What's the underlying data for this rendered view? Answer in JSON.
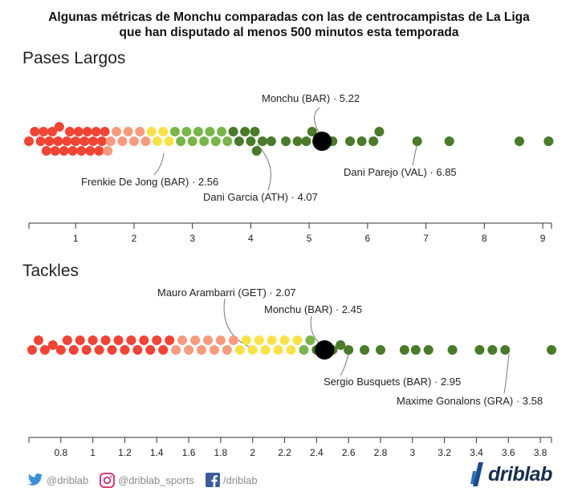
{
  "title_lines": [
    "Algunas métricas de Monchu comparadas con las de centrocampistas de La Liga",
    "que han disputado al menos 500 minutos esta temporada"
  ],
  "colors": {
    "red": "#f04435",
    "salmon": "#f79b7e",
    "yellow": "#f8e24a",
    "lightgreen": "#79b54a",
    "darkgreen": "#4a7a2a",
    "highlight": "#000000",
    "connector": "#777777"
  },
  "chart_data": [
    {
      "type": "scatter",
      "title": "Pases Largos",
      "xlim": [
        0.2,
        9.15
      ],
      "ticks": [
        "1",
        "2",
        "3",
        "4",
        "5",
        "6",
        "7",
        "8",
        "9"
      ],
      "tick_values": [
        1,
        2,
        3,
        4,
        5,
        6,
        7,
        8,
        9
      ],
      "color_breaks": [
        1.0,
        1.55,
        2.25,
        2.7,
        3.7
      ],
      "highlight": {
        "name": "Monchu (BAR)",
        "value": 5.22,
        "label": "Monchu (BAR) · 5.22"
      },
      "annotations": [
        {
          "label": "Frenkie De Jong (BAR) · 2.56",
          "value": 2.56
        },
        {
          "label": "Dani Garcia (ATH) · 4.07",
          "value": 4.07
        },
        {
          "label": "Dani Parejo (VAL) · 6.85",
          "value": 6.85
        }
      ],
      "values": [
        0.2,
        0.3,
        0.4,
        0.45,
        0.5,
        0.55,
        0.6,
        0.65,
        0.7,
        0.72,
        0.8,
        0.85,
        0.9,
        0.95,
        1.0,
        1.05,
        1.1,
        1.15,
        1.2,
        1.25,
        1.3,
        1.35,
        1.4,
        1.45,
        1.5,
        1.55,
        1.6,
        1.7,
        1.8,
        1.9,
        2.0,
        2.1,
        2.2,
        2.3,
        2.4,
        2.5,
        2.6,
        2.7,
        2.8,
        2.9,
        3.0,
        3.1,
        3.2,
        3.3,
        3.4,
        3.5,
        3.6,
        3.7,
        3.8,
        3.9,
        4.0,
        4.07,
        4.1,
        4.2,
        4.35,
        4.6,
        4.8,
        4.95,
        5.05,
        5.4,
        5.7,
        5.9,
        6.1,
        6.2,
        6.85,
        7.4,
        8.6,
        9.1
      ]
    },
    {
      "type": "scatter",
      "title": "Tackles",
      "xlim": [
        0.6,
        3.87
      ],
      "ticks": [
        "0.8",
        "1",
        "1.2",
        "1.4",
        "1.6",
        "1.8",
        "2",
        "2.2",
        "2.4",
        "2.6",
        "2.8",
        "3",
        "3.2",
        "3.4",
        "3.6",
        "3.8"
      ],
      "tick_values": [
        0.8,
        1.0,
        1.2,
        1.4,
        1.6,
        1.8,
        2.0,
        2.2,
        2.4,
        2.6,
        2.8,
        3.0,
        3.2,
        3.4,
        3.6,
        3.8
      ],
      "color_breaks": [
        1.1,
        1.5,
        1.9,
        2.3,
        2.4
      ],
      "highlight": {
        "name": "Monchu (BAR)",
        "value": 2.45,
        "label": "Monchu (BAR) · 2.45"
      },
      "annotations": [
        {
          "label": "Mauro Arambarri (GET) · 2.07",
          "value": 2.07
        },
        {
          "label": "Sergio Busquets (BAR) · 2.95",
          "value": 2.95
        },
        {
          "label": "Maxime Gonalons (GRA) · 3.58",
          "value": 3.58
        }
      ],
      "values": [
        0.62,
        0.66,
        0.7,
        0.75,
        0.8,
        0.84,
        0.88,
        0.92,
        0.96,
        1.0,
        1.04,
        1.08,
        1.12,
        1.16,
        1.2,
        1.24,
        1.28,
        1.32,
        1.36,
        1.4,
        1.44,
        1.48,
        1.52,
        1.56,
        1.6,
        1.64,
        1.68,
        1.72,
        1.76,
        1.8,
        1.84,
        1.88,
        1.92,
        1.96,
        2.0,
        2.04,
        2.08,
        2.12,
        2.16,
        2.2,
        2.24,
        2.28,
        2.32,
        2.36,
        2.4,
        2.5,
        2.55,
        2.6,
        2.7,
        2.8,
        2.95,
        3.02,
        3.1,
        3.25,
        3.42,
        3.5,
        3.58,
        3.87
      ]
    }
  ],
  "footer": {
    "twitter": "@driblab",
    "instagram": "@driblab_sports",
    "facebook": "/driblab",
    "brand": "driblab"
  }
}
